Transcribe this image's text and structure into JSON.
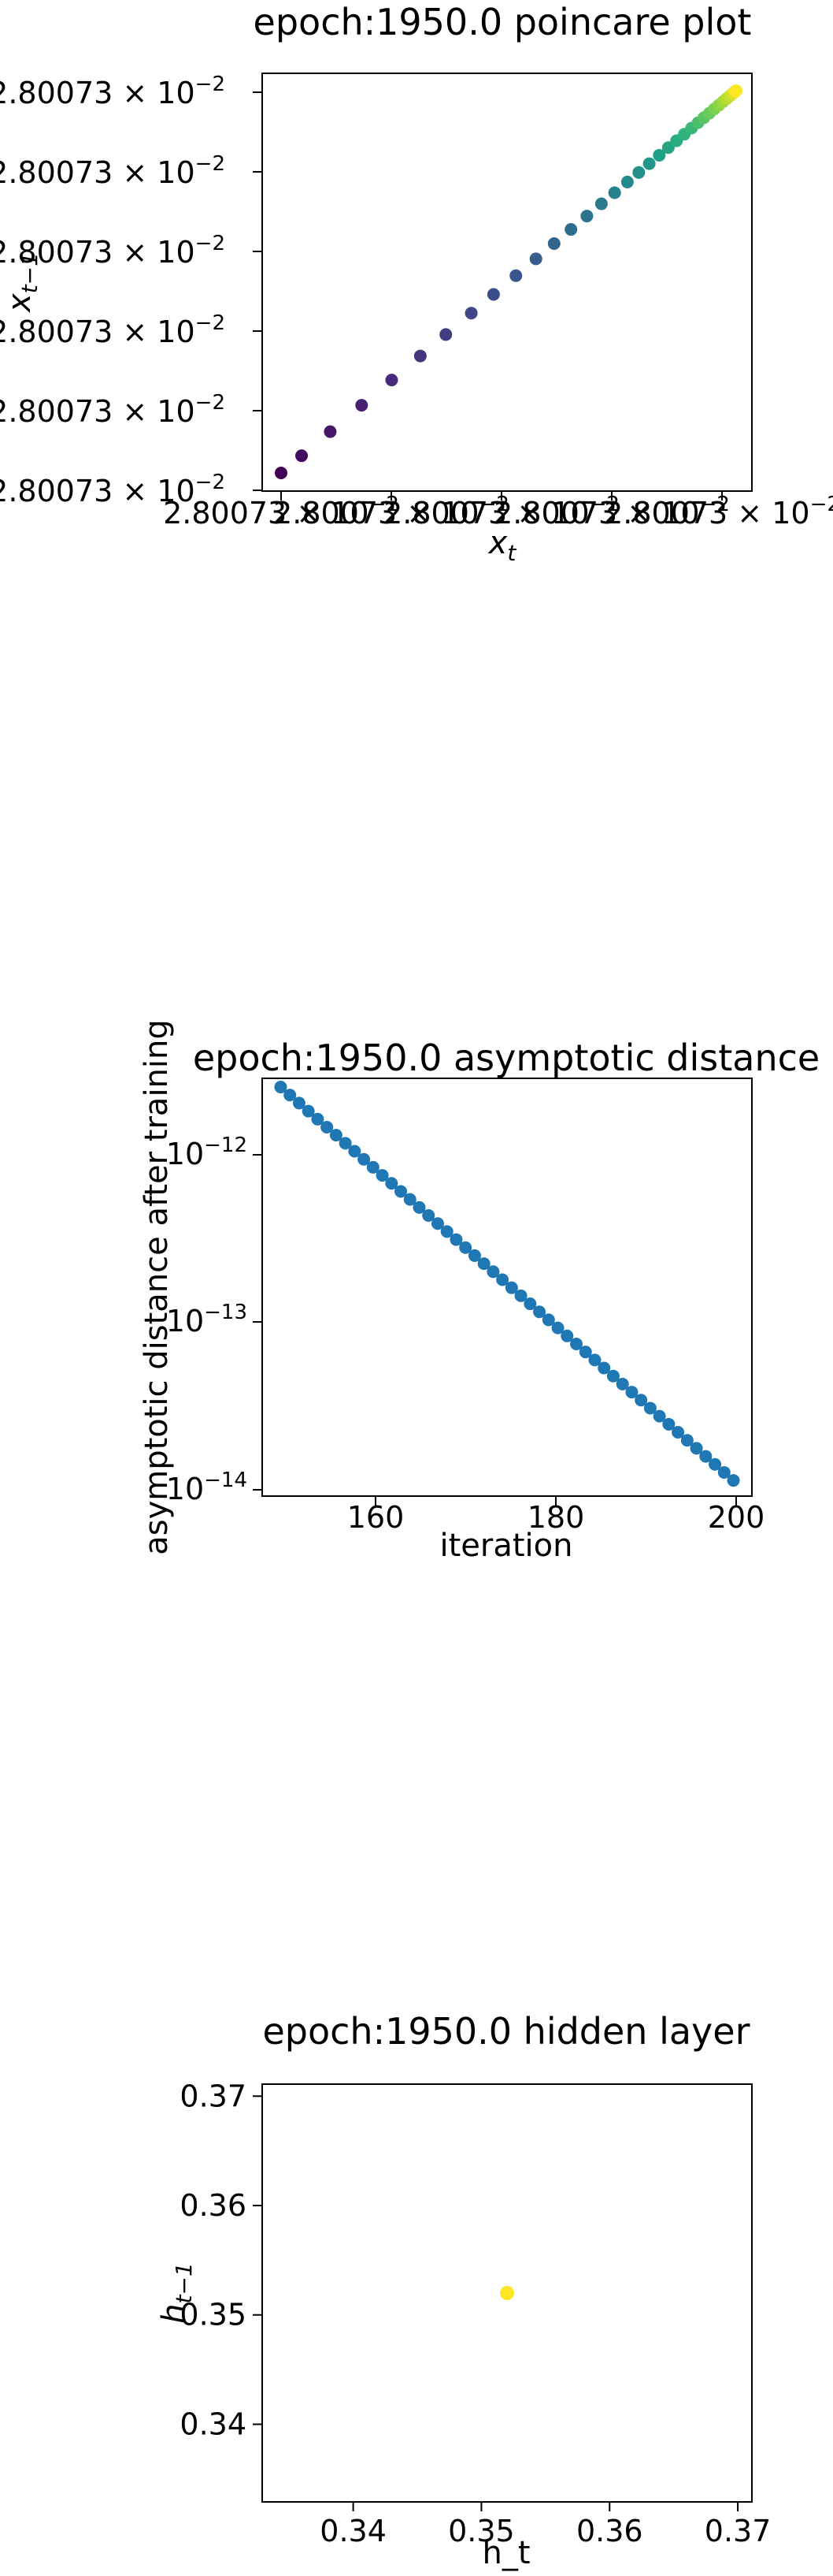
{
  "chart_data": [
    {
      "type": "scatter",
      "title": "epoch:1950.0 poincare plot",
      "xlabel_base": "x",
      "xlabel_sub": "t",
      "ylabel_base": "x",
      "ylabel_sub": "t−1",
      "xticks": [
        "2.80073 × 10",
        "2.80073 × 10",
        "2.80073 × 10",
        "2.80073 × 10",
        "2.80073 × 10"
      ],
      "xtick_exp": "−2",
      "yticks": [
        "2.80073 × 10",
        "2.80073 × 10",
        "2.80073 × 10",
        "2.80073 × 10",
        "2.80073 × 10",
        "2.80073 × 10"
      ],
      "ytick_exp": "−2",
      "xlim": [
        0,
        1
      ],
      "ylim": [
        0,
        1
      ],
      "points_t_normalized": [
        0.0,
        0.045,
        0.108,
        0.177,
        0.243,
        0.306,
        0.362,
        0.418,
        0.467,
        0.516,
        0.56,
        0.6,
        0.637,
        0.672,
        0.704,
        0.733,
        0.761,
        0.786,
        0.809,
        0.831,
        0.851,
        0.869,
        0.886,
        0.902,
        0.916,
        0.929,
        0.941,
        0.952,
        0.962,
        0.971,
        0.979,
        0.986,
        0.992,
        0.997,
        1.0
      ],
      "colormap": "viridis"
    },
    {
      "type": "scatter",
      "title": "epoch:1950.0 asymptotic distance",
      "xlabel": "iteration",
      "ylabel": "asymptotic distance after training",
      "xlim": [
        148,
        201
      ],
      "ylim_log10": [
        -14.02,
        -11.62
      ],
      "xticks": [
        "160",
        "180",
        "200"
      ],
      "ytick_base": "10",
      "yticks_exp": [
        "−12",
        "−13",
        "−14"
      ],
      "x_range": [
        150,
        199
      ],
      "log10_y_range": [
        -11.67,
        -13.93
      ],
      "point_color": "#1f77b4"
    },
    {
      "type": "scatter",
      "title": "epoch:1950.0 hidden layer",
      "xlabel": "h_t",
      "ylabel_base": "h",
      "ylabel_sub": "t−1",
      "xlim": [
        0.3329,
        0.3711
      ],
      "ylim": [
        0.3329,
        0.3711
      ],
      "xticks": [
        "0.34",
        "0.35",
        "0.36",
        "0.37"
      ],
      "yticks": [
        "0.34",
        "0.35",
        "0.36",
        "0.37"
      ],
      "points": [
        {
          "x": 0.352,
          "y": 0.352
        }
      ],
      "point_color": "#fde725"
    }
  ]
}
